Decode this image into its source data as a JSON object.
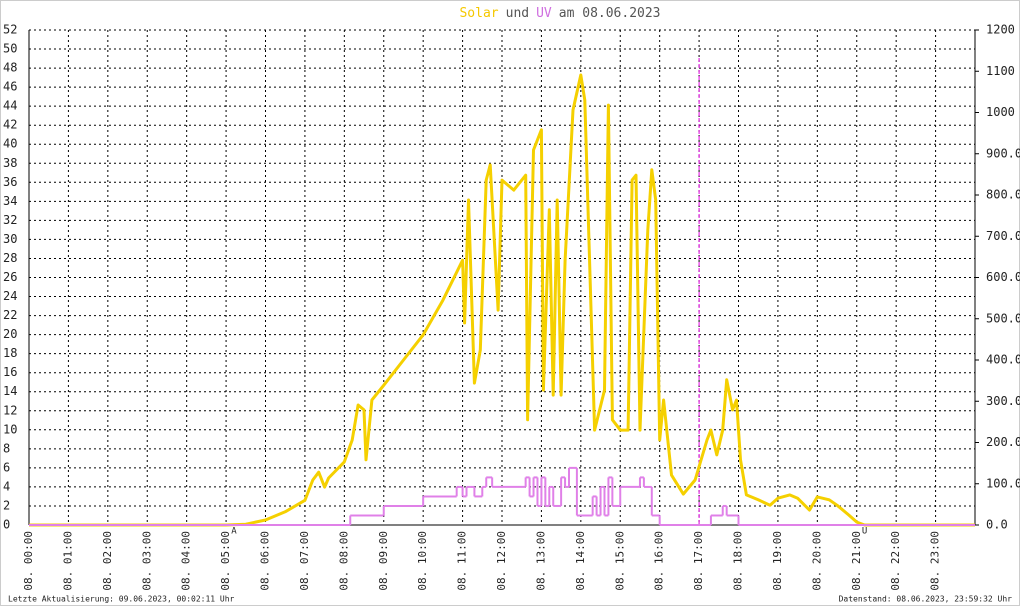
{
  "chart_data": {
    "type": "line",
    "title_parts": [
      {
        "text": "Solar",
        "color": "#f5c800"
      },
      {
        "text": "und",
        "color": "#555555"
      },
      {
        "text": "UV",
        "color": "#d070e0"
      },
      {
        "text": "am 08.06.2023",
        "color": "#555555"
      }
    ],
    "footer_left": "Letzte Aktualisierung: 09.06.2023, 00:02:11 Uhr",
    "footer_right": "Datenstand: 08.06.2023, 23:59:32 Uhr",
    "xlim": [
      0,
      24
    ],
    "xticks": [
      {
        "value": 0,
        "label": "08. 00:00"
      },
      {
        "value": 1,
        "label": "08. 01:00"
      },
      {
        "value": 2,
        "label": "08. 02:00"
      },
      {
        "value": 3,
        "label": "08. 03:00"
      },
      {
        "value": 4,
        "label": "08. 04:00"
      },
      {
        "value": 5,
        "label": "08. 05:00"
      },
      {
        "value": 6,
        "label": "08. 06:00"
      },
      {
        "value": 7,
        "label": "08. 07:00"
      },
      {
        "value": 8,
        "label": "08. 08:00"
      },
      {
        "value": 9,
        "label": "08. 09:00"
      },
      {
        "value": 10,
        "label": "08. 10:00"
      },
      {
        "value": 11,
        "label": "08. 11:00"
      },
      {
        "value": 12,
        "label": "08. 12:00"
      },
      {
        "value": 13,
        "label": "08. 13:00"
      },
      {
        "value": 14,
        "label": "08. 14:00"
      },
      {
        "value": 15,
        "label": "08. 15:00"
      },
      {
        "value": 16,
        "label": "08. 16:00"
      },
      {
        "value": 17,
        "label": "08. 17:00"
      },
      {
        "value": 18,
        "label": "08. 18:00"
      },
      {
        "value": 19,
        "label": "08. 19:00"
      },
      {
        "value": 20,
        "label": "08. 20:00"
      },
      {
        "value": 21,
        "label": "08. 21:00"
      },
      {
        "value": 22,
        "label": "08. 22:00"
      },
      {
        "value": 23,
        "label": "08. 23:00"
      }
    ],
    "ylim": [
      0,
      52
    ],
    "yticks": [
      0,
      2,
      4,
      6,
      8,
      10,
      12,
      14,
      16,
      18,
      20,
      22,
      24,
      26,
      28,
      30,
      32,
      34,
      36,
      38,
      40,
      42,
      44,
      46,
      48,
      50,
      52
    ],
    "y2lim": [
      0,
      1200
    ],
    "y2ticks": [
      {
        "value": 0,
        "label": "0.0"
      },
      {
        "value": 100,
        "label": "100.0"
      },
      {
        "value": 200,
        "label": "200.0"
      },
      {
        "value": 300,
        "label": "300.0"
      },
      {
        "value": 400,
        "label": "400.0"
      },
      {
        "value": 500,
        "label": "500.0"
      },
      {
        "value": 600,
        "label": "600.0"
      },
      {
        "value": 700,
        "label": "700.0"
      },
      {
        "value": 800,
        "label": "800.0"
      },
      {
        "value": 900,
        "label": "900.0"
      },
      1000,
      1100,
      1200
    ],
    "grid": true,
    "vline": {
      "x": 17,
      "color": "#e000e0"
    },
    "markers": [
      {
        "x": 5.2,
        "text": "A",
        "color": "#e03030"
      },
      {
        "x": 21.2,
        "text": "U",
        "color": "#e03030"
      }
    ],
    "series": [
      {
        "name": "Solar",
        "color": "#f5d000",
        "axis": "y2",
        "step": false,
        "x": [
          0,
          5.0,
          5.5,
          6.0,
          6.5,
          7.0,
          7.2,
          7.35,
          7.5,
          7.6,
          8.0,
          8.2,
          8.35,
          8.5,
          8.55,
          8.7,
          9.0,
          9.5,
          10.0,
          10.5,
          11.0,
          11.05,
          11.15,
          11.3,
          11.45,
          11.6,
          11.7,
          11.9,
          12.0,
          12.3,
          12.6,
          12.65,
          12.8,
          13.0,
          13.05,
          13.2,
          13.3,
          13.4,
          13.5,
          13.6,
          13.8,
          14.0,
          14.1,
          14.35,
          14.6,
          14.7,
          14.8,
          15.0,
          15.2,
          15.3,
          15.4,
          15.5,
          15.7,
          15.8,
          15.9,
          16.0,
          16.1,
          16.3,
          16.6,
          16.9,
          17.2,
          17.3,
          17.45,
          17.6,
          17.7,
          17.85,
          17.95,
          18.05,
          18.2,
          18.5,
          18.8,
          19.0,
          19.3,
          19.5,
          19.8,
          20.0,
          20.3,
          20.5,
          20.8,
          21.0,
          21.2,
          24
        ],
        "values": [
          0,
          0,
          2,
          12,
          32,
          60,
          109,
          128,
          92,
          114,
          153,
          206,
          291,
          279,
          158,
          303,
          339,
          400,
          461,
          545,
          642,
          490,
          788,
          344,
          424,
          836,
          873,
          521,
          836,
          812,
          848,
          255,
          909,
          958,
          327,
          764,
          315,
          788,
          315,
          642,
          1006,
          1091,
          1030,
          230,
          327,
          1018,
          255,
          230,
          230,
          836,
          848,
          230,
          715,
          861,
          788,
          206,
          303,
          121,
          75,
          109,
          206,
          230,
          170,
          230,
          352,
          279,
          303,
          158,
          73,
          61,
          48,
          65,
          73,
          65,
          36,
          68,
          61,
          48,
          24,
          7,
          0,
          0
        ]
      },
      {
        "name": "UV",
        "color": "#e080e8",
        "axis": "y",
        "step": true,
        "x": [
          0,
          8.15,
          9.0,
          10.0,
          10.85,
          11.0,
          11.1,
          11.3,
          11.5,
          11.6,
          11.75,
          12.6,
          12.7,
          12.8,
          12.9,
          13.0,
          13.1,
          13.2,
          13.3,
          13.5,
          13.6,
          13.7,
          13.9,
          14.3,
          14.4,
          14.5,
          14.6,
          14.7,
          14.8,
          15.0,
          15.5,
          15.6,
          15.8,
          16.0,
          17.3,
          17.6,
          17.7,
          18.0,
          24
        ],
        "values": [
          0,
          1,
          2,
          3,
          4,
          3,
          4,
          3,
          4,
          5,
          4,
          5,
          3,
          5,
          2,
          5,
          2,
          4,
          2,
          5,
          4,
          6,
          1,
          3,
          1,
          4,
          1,
          5,
          2,
          4,
          5,
          4,
          1,
          0,
          1,
          2,
          1,
          0,
          0
        ]
      }
    ]
  }
}
